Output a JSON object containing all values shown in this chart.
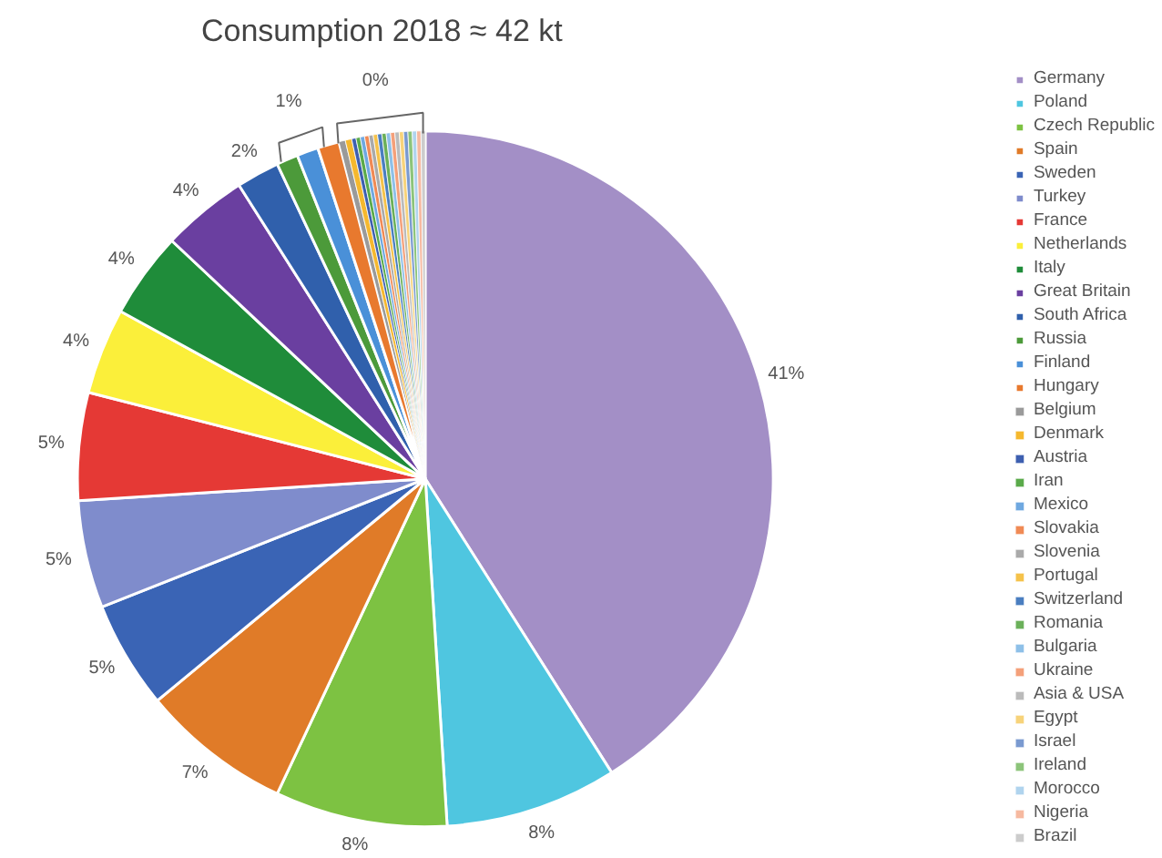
{
  "chart_data": {
    "type": "pie",
    "title": "Consumption 2018 ≈ 42 kt",
    "categories": [
      "Germany",
      "Poland",
      "Czech Republic",
      "Spain",
      "Sweden",
      "Turkey",
      "France",
      "Netherlands",
      "Italy",
      "Great Britain",
      "South Africa",
      "Russia",
      "Finland",
      "Hungary",
      "Belgium",
      "Denmark",
      "Austria",
      "Iran",
      "Mexico",
      "Slovakia",
      "Slovenia",
      "Portugal",
      "Switzerland",
      "Romania",
      "Bulgaria",
      "Ukraine",
      "Asia & USA",
      "Egypt",
      "Israel",
      "Ireland",
      "Morocco",
      "Nigeria",
      "Brazil"
    ],
    "values": [
      41,
      8,
      8,
      7,
      5,
      5,
      5,
      4,
      4,
      4,
      2,
      1,
      1,
      1,
      0.3,
      0.3,
      0.2,
      0.2,
      0.2,
      0.2,
      0.2,
      0.2,
      0.2,
      0.2,
      0.2,
      0.2,
      0.2,
      0.2,
      0.2,
      0.2,
      0.2,
      0.2,
      0.2
    ],
    "value_labels": [
      "41%",
      "8%",
      "8%",
      "7%",
      "5%",
      "5%",
      "5%",
      "4%",
      "4%",
      "4%",
      "2%",
      null,
      null,
      null,
      null,
      null,
      null,
      null,
      null,
      null,
      null,
      null,
      null,
      null,
      null,
      null,
      null,
      null,
      null,
      null,
      null,
      null,
      null
    ],
    "annotations": [
      "1%",
      "0%"
    ],
    "colors": [
      "#a38fc6",
      "#4fc6e0",
      "#7dc242",
      "#e07b28",
      "#3a64b5",
      "#7f8ccc",
      "#e53935",
      "#fbef3a",
      "#1f8c3a",
      "#6a3fa0",
      "#3060ac",
      "#4c9a3a",
      "#4a90d8",
      "#e8792e",
      "#9a9a9a",
      "#f5b82e",
      "#3d5fb0",
      "#5aaa4a",
      "#6fa8e0",
      "#f08a55",
      "#aaaaaa",
      "#f5c24a",
      "#4a7ec0",
      "#6bb05a",
      "#8ec0e8",
      "#f4a07a",
      "#bbbbbb",
      "#f7d37a",
      "#7a9ad0",
      "#8cc47a",
      "#b0d4ee",
      "#f6b9a0",
      "#cccccc"
    ],
    "legend": "right"
  }
}
